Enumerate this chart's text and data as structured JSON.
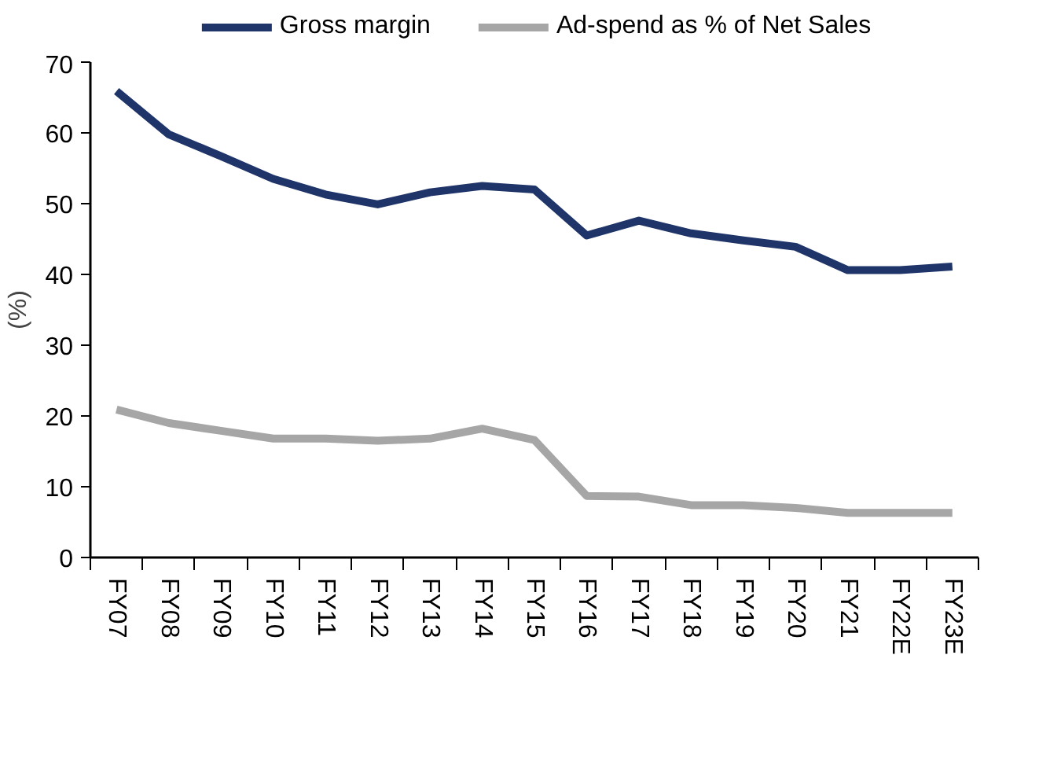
{
  "chart_data": {
    "type": "line",
    "ylabel": "(%)",
    "categories": [
      "FY07",
      "FY08",
      "FY09",
      "FY10",
      "FY11",
      "FY12",
      "FY13",
      "FY14",
      "FY15",
      "FY16",
      "FY17",
      "FY18",
      "FY19",
      "FY20",
      "FY21",
      "FY22E",
      "FY23E"
    ],
    "series": [
      {
        "name": "Gross margin",
        "color": "#1f3468",
        "values": [
          65.9,
          59.8,
          56.7,
          53.5,
          51.3,
          49.9,
          51.6,
          52.5,
          52.0,
          45.5,
          47.6,
          45.8,
          44.8,
          43.9,
          40.6,
          40.6,
          41.1
        ]
      },
      {
        "name": "Ad-spend as % of Net Sales",
        "color": "#a6a6a6",
        "values": [
          20.9,
          19.0,
          17.9,
          16.8,
          16.8,
          16.5,
          16.8,
          18.2,
          16.6,
          8.7,
          8.6,
          7.4,
          7.4,
          7.0,
          6.3,
          6.3,
          6.3
        ]
      }
    ],
    "ylim": [
      0,
      70
    ],
    "yticks": [
      0,
      10,
      20,
      30,
      40,
      50,
      60,
      70
    ],
    "grid": false,
    "legend": "top",
    "marker": "none",
    "line_style": "solid"
  }
}
